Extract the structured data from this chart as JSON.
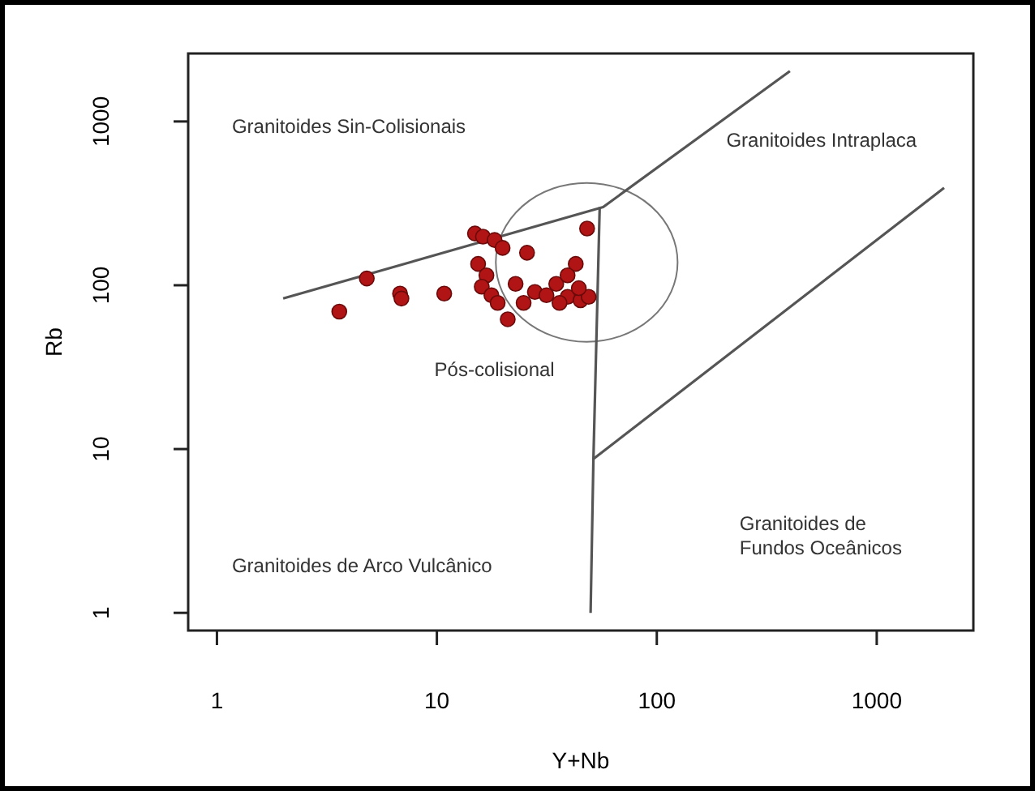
{
  "chart_data": {
    "type": "scatter",
    "xlabel": "Y+Nb",
    "ylabel": "Rb",
    "log": "xy",
    "xlim": [
      0.74,
      2750
    ],
    "ylim": [
      0.78,
      2600
    ],
    "xticks": [
      1,
      10,
      100,
      1000
    ],
    "yticks": [
      1,
      10,
      100,
      1000
    ],
    "grid": false,
    "marker": "circle",
    "series": [
      {
        "color": "#b01414",
        "x": [
          3.6,
          4.8,
          6.8,
          6.9,
          10.8,
          14.9,
          16.2,
          18.3,
          19.9,
          25.7,
          48.2,
          42.8,
          15.4,
          16.8,
          16.0,
          17.7,
          18.9,
          21,
          24.8,
          27.9,
          31.5,
          34.9,
          39.3,
          39.3,
          45,
          49,
          44.2,
          36.1,
          22.8
        ],
        "values": [
          69,
          110,
          89,
          83,
          89,
          207,
          198,
          189,
          169,
          158,
          222,
          135,
          135,
          115,
          98,
          87,
          78,
          62,
          78,
          91,
          87,
          102,
          115,
          85,
          81,
          85,
          96,
          78,
          102
        ]
      },
      {
        "type": "line",
        "color": "#555555",
        "marker": "none",
        "x": [
          2,
          57,
          403
        ],
        "values": [
          83,
          300,
          2030
        ]
      },
      {
        "type": "line",
        "color": "#555555",
        "marker": "none",
        "x": [
          50,
          51.5,
          55
        ],
        "values": [
          1,
          8.7,
          300
        ]
      },
      {
        "type": "line",
        "color": "#555555",
        "marker": "none",
        "x": [
          51.5,
          2025
        ],
        "values": [
          8.7,
          393
        ]
      }
    ],
    "annotations": [
      "Granitoides Sin-Colisionais",
      "Granitoides Intraplaca",
      "Pós-colisional",
      "Granitoides de Arco Vulcânico",
      "Granitoides de\nFundos Oceânicos"
    ]
  }
}
